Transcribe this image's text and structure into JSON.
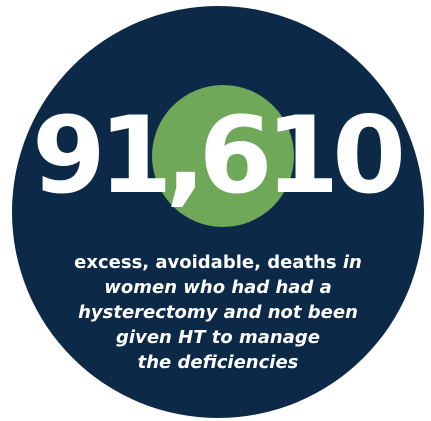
{
  "stat": {
    "number": "91,610",
    "caption": {
      "line1_normal": "excess, avoidable, deaths ",
      "line1_italic": "in",
      "line2": "women who had had a",
      "line3": "hysterectomy and not been",
      "line4": "given HT to manage",
      "line5": "the deficiencies"
    }
  },
  "colors": {
    "circle_background": "#0c2a48",
    "accent_circle": "#70a85a",
    "text": "#ffffff",
    "page_background": "#ffffff"
  }
}
